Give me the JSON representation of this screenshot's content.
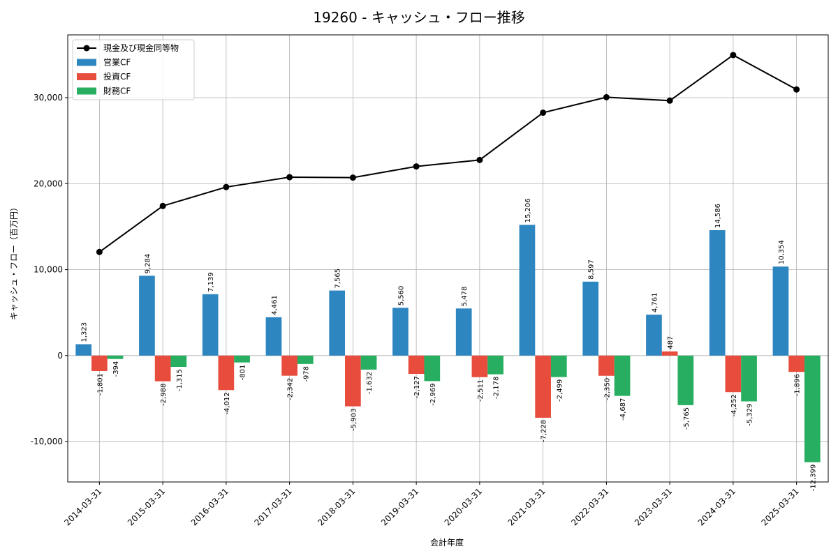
{
  "chart_data": {
    "type": "bar",
    "title": "19260 - キャッシュ・フロー推移",
    "xlabel": "会計年度",
    "ylabel": "キャッシュ・フロー（百万円）",
    "ylim": [
      -14700,
      37300
    ],
    "yticks": [
      -10000,
      0,
      10000,
      20000,
      30000
    ],
    "ytick_labels": [
      "-10,000",
      "0",
      "10,000",
      "20,000",
      "30,000"
    ],
    "grid": true,
    "legend_position": "top-left",
    "categories": [
      "2014-03-31",
      "2015-03-31",
      "2016-03-31",
      "2017-03-31",
      "2018-03-31",
      "2019-03-31",
      "2020-03-31",
      "2021-03-31",
      "2022-03-31",
      "2023-03-31",
      "2024-03-31",
      "2025-03-31"
    ],
    "series": [
      {
        "name": "営業CF",
        "kind": "bar",
        "color": "#2e86c1",
        "values": [
          1323,
          9284,
          7139,
          4461,
          7565,
          5560,
          5478,
          15206,
          8597,
          4761,
          14586,
          10354
        ],
        "labels": [
          "1,323",
          "9,284",
          "7,139",
          "4,461",
          "7,565",
          "5,560",
          "5,478",
          "15,206",
          "8,597",
          "4,761",
          "14,586",
          "10,354"
        ]
      },
      {
        "name": "投資CF",
        "kind": "bar",
        "color": "#e74c3c",
        "values": [
          -1801,
          -2988,
          -4012,
          -2342,
          -5903,
          -2127,
          -2511,
          -7228,
          -2350,
          487,
          -4252,
          -1896
        ],
        "labels": [
          "-1,801",
          "-2,988",
          "-4,012",
          "-2,342",
          "-5,903",
          "-2,127",
          "-2,511",
          "-7,228",
          "-2,350",
          "487",
          "-4,252",
          "-1,896"
        ]
      },
      {
        "name": "財務CF",
        "kind": "bar",
        "color": "#27ae60",
        "values": [
          -394,
          -1315,
          -801,
          -978,
          -1632,
          -2969,
          -2178,
          -2499,
          -4687,
          -5765,
          -5329,
          -12399
        ],
        "labels": [
          "-394",
          "-1,315",
          "-801",
          "-978",
          "-1,632",
          "-2,969",
          "-2,178",
          "-2,499",
          "-4,687",
          "-5,765",
          "-5,329",
          "-12,399"
        ]
      },
      {
        "name": "現金及び現金同等物",
        "kind": "line",
        "color": "#000000",
        "values": [
          12050,
          17400,
          19600,
          20750,
          20700,
          22000,
          22750,
          28250,
          30050,
          29650,
          34950,
          30950
        ]
      }
    ]
  }
}
